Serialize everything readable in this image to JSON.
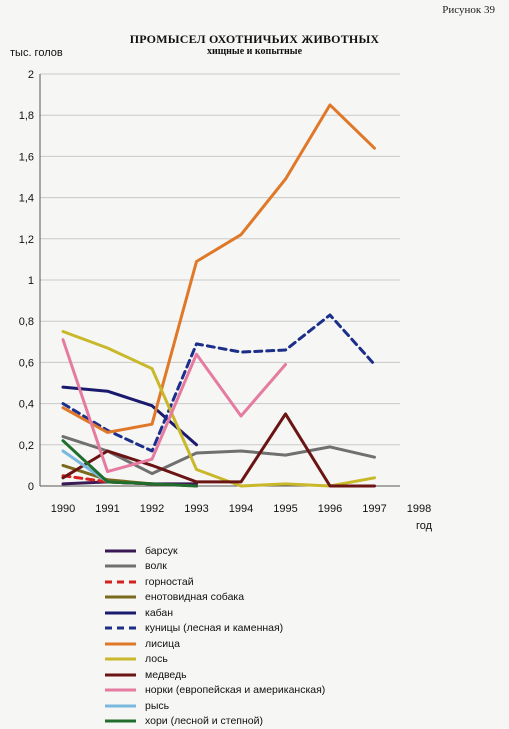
{
  "figure_label": "Рисунок 39",
  "chart_data": {
    "type": "line",
    "title": "ПРОМЫСЕЛ ОХОТНИЧЬИХ ЖИВОТНЫХ",
    "subtitle": "хищные и копытные",
    "ylabel": "тыс. голов",
    "xlabel": "год",
    "x": [
      1990,
      1991,
      1992,
      1993,
      1994,
      1995,
      1996,
      1997,
      1998
    ],
    "xlim": [
      1990,
      1998
    ],
    "ylim": [
      0,
      2
    ],
    "yticks": [
      "0",
      "0,2",
      "0,4",
      "0,6",
      "0,8",
      "1",
      "1,2",
      "1,4",
      "1,6",
      "1,8",
      "2"
    ],
    "grid": true,
    "legend_position": "bottom",
    "series": [
      {
        "name": "барсук",
        "color": "#3a1a55",
        "dash": false,
        "values": [
          0.01,
          0.02,
          0.01,
          0.01,
          null,
          null,
          null,
          null,
          null
        ]
      },
      {
        "name": "волк",
        "color": "#707070",
        "dash": false,
        "values": [
          0.24,
          0.17,
          0.06,
          0.16,
          0.17,
          0.15,
          0.19,
          0.14,
          null
        ]
      },
      {
        "name": "горностай",
        "color": "#d61f1f",
        "dash": true,
        "values": [
          0.05,
          0.02,
          0.01,
          0.0,
          null,
          null,
          null,
          null,
          null
        ]
      },
      {
        "name": "енотовидная собака",
        "color": "#7a6a1e",
        "dash": false,
        "values": [
          0.1,
          0.03,
          0.01,
          null,
          null,
          null,
          null,
          null,
          null
        ]
      },
      {
        "name": "кабан",
        "color": "#1a1a6e",
        "dash": false,
        "values": [
          0.48,
          0.46,
          0.39,
          0.2,
          null,
          null,
          null,
          null,
          null
        ]
      },
      {
        "name": "куницы (лесная и каменная)",
        "color": "#1b2f8a",
        "dash": true,
        "values": [
          0.4,
          0.27,
          0.17,
          0.69,
          0.65,
          0.66,
          0.83,
          0.59,
          null
        ]
      },
      {
        "name": "лисица",
        "color": "#e0782a",
        "dash": false,
        "values": [
          0.38,
          0.26,
          0.3,
          1.09,
          1.22,
          1.49,
          1.85,
          1.64,
          null
        ]
      },
      {
        "name": "лось",
        "color": "#c8b82a",
        "dash": false,
        "values": [
          0.75,
          0.67,
          0.57,
          0.08,
          0.0,
          0.01,
          0.0,
          0.04,
          null
        ]
      },
      {
        "name": "медведь",
        "color": "#6b1414",
        "dash": false,
        "values": [
          0.04,
          0.17,
          0.1,
          0.02,
          0.02,
          0.35,
          0.0,
          0.0,
          null
        ]
      },
      {
        "name": "норки (европейская и американская)",
        "color": "#e67ba2",
        "dash": false,
        "values": [
          0.71,
          0.07,
          0.13,
          0.64,
          0.34,
          0.59,
          null,
          null,
          null
        ]
      },
      {
        "name": "рысь",
        "color": "#7ab8e0",
        "dash": false,
        "values": [
          0.17,
          0.02,
          null,
          null,
          null,
          null,
          null,
          null,
          null
        ]
      },
      {
        "name": "хори (лесной и степной)",
        "color": "#1f6e2e",
        "dash": false,
        "values": [
          0.22,
          0.02,
          0.01,
          0.0,
          null,
          null,
          null,
          null,
          null
        ]
      }
    ]
  }
}
